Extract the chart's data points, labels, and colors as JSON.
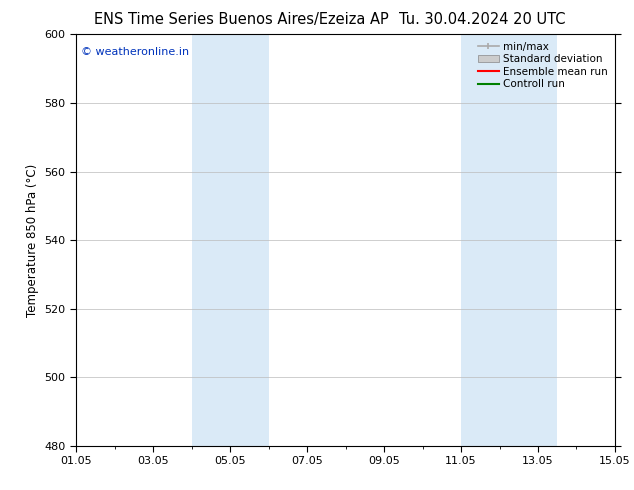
{
  "title_left": "ENS Time Series Buenos Aires/Ezeiza AP",
  "title_right": "Tu. 30.04.2024 20 UTC",
  "ylabel": "Temperature 850 hPa (°C)",
  "ylim": [
    480,
    600
  ],
  "yticks": [
    480,
    500,
    520,
    540,
    560,
    580,
    600
  ],
  "xtick_labels": [
    "01.05",
    "03.05",
    "05.05",
    "07.05",
    "09.05",
    "11.05",
    "13.05",
    "15.05"
  ],
  "xtick_positions": [
    0,
    2,
    4,
    6,
    8,
    10,
    12,
    14
  ],
  "xlim": [
    0,
    14
  ],
  "shaded_bands": [
    {
      "x_start": 3.0,
      "x_end": 5.0,
      "color": "#daeaf7"
    },
    {
      "x_start": 10.0,
      "x_end": 12.5,
      "color": "#daeaf7"
    }
  ],
  "legend_entries": [
    {
      "label": "min/max",
      "color": "#aaaaaa",
      "type": "minmax"
    },
    {
      "label": "Standard deviation",
      "color": "#cccccc",
      "type": "stddev"
    },
    {
      "label": "Ensemble mean run",
      "color": "red",
      "type": "line"
    },
    {
      "label": "Controll run",
      "color": "green",
      "type": "line"
    }
  ],
  "watermark_text": "© weatheronline.in",
  "watermark_color": "#0033bb",
  "background_color": "#ffffff",
  "plot_bg_color": "#ffffff",
  "grid_color": "#bbbbbb",
  "tick_label_fontsize": 8,
  "title_fontsize": 10.5,
  "ylabel_fontsize": 8.5
}
